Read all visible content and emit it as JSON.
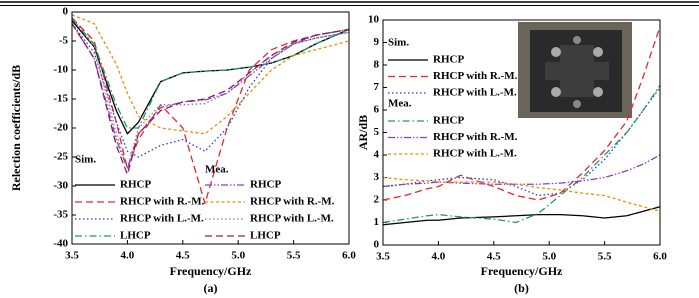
{
  "chart_data": [
    {
      "type": "line",
      "label": "(a)",
      "xlabel": "Frequency/GHz",
      "ylabel": "Relection coefficients/dB",
      "xlim": [
        3.5,
        6.0
      ],
      "xticks": [
        3.5,
        {
          "value": 4,
          "label": "4.0"
        },
        4.5,
        {
          "value": 5,
          "label": "5.0"
        },
        5.5,
        {
          "value": 6,
          "label": "6.0"
        }
      ],
      "ylim": [
        -40,
        0
      ],
      "yticks": [
        -40,
        -35,
        -30,
        -25,
        -20,
        -15,
        -10,
        -5,
        0
      ],
      "x": [
        3.5,
        3.7,
        3.9,
        4.0,
        4.1,
        4.3,
        4.5,
        4.7,
        4.9,
        5.1,
        5.3,
        5.5,
        5.7,
        6.0
      ],
      "legend_groups": [
        {
          "title": "Sim.",
          "series": [
            {
              "name": "RHCP",
              "color": "#000000",
              "dash": "solid",
              "values": [
                -1.5,
                -6,
                -17,
                -21,
                -19,
                -12,
                -10.5,
                -10.2,
                -10,
                -9.5,
                -8.8,
                -7.5,
                -5.5,
                -3
              ]
            },
            {
              "name": "RHCP with R.-M.",
              "color": "#e8262a",
              "dash": "dashed",
              "values": [
                -1,
                -5,
                -19,
                -27,
                -22,
                -16,
                -20,
                -33,
                -20,
                -10,
                -6.5,
                -5,
                -4,
                -3
              ]
            },
            {
              "name": "RHCP with L.-M.",
              "color": "#2b35c9",
              "dash": "dotted",
              "values": [
                -2,
                -7,
                -19,
                -24,
                -25,
                -23,
                -22,
                -24,
                -20,
                -13,
                -8,
                -5.5,
                -4.5,
                -3.5
              ]
            },
            {
              "name": "LHCP",
              "color": "#1e9a6a",
              "dash": "dashdot",
              "values": [
                -1.2,
                -5.5,
                -16,
                -20,
                -20,
                -12,
                -10.5,
                -10.2,
                -10,
                -9.5,
                -8.8,
                -7.5,
                -5.5,
                -3
              ]
            }
          ]
        },
        {
          "title": "Mea.",
          "series": [
            {
              "name": "RHCP",
              "color": "#8a3fc4",
              "dash": "dashdotdot",
              "values": [
                -2,
                -8,
                -22,
                -27,
                -21,
                -16.5,
                -15.5,
                -15.2,
                -14,
                -11,
                -8,
                -5.5,
                -4,
                -3
              ]
            },
            {
              "name": "RHCP with R.-M.",
              "color": "#e89000",
              "dash": "shortdash",
              "values": [
                -0.5,
                -2,
                -9,
                -14,
                -18,
                -20,
                -20.5,
                -21,
                -18,
                -14,
                -10,
                -7.5,
                -6.5,
                -5
              ]
            },
            {
              "name": "RHCP with L.-M.",
              "color": "#7a7a99",
              "dash": "dotted",
              "values": [
                -1,
                -6,
                -21,
                -27,
                -20,
                -16,
                -16,
                -15.8,
                -14,
                -10.5,
                -7.5,
                -5.5,
                -4.5,
                -3.5
              ]
            },
            {
              "name": "LHCP",
              "color": "#8a2050",
              "dash": "dashed",
              "values": [
                -2,
                -8,
                -23,
                -28,
                -21,
                -17,
                -15.5,
                -15,
                -13.5,
                -10.5,
                -7.5,
                -5.2,
                -4,
                -3
              ]
            }
          ]
        }
      ]
    },
    {
      "type": "line",
      "label": "(b)",
      "xlabel": "Frequency/GHz",
      "ylabel": "AR/dB",
      "xlim": [
        3.5,
        6.0
      ],
      "xticks": [
        3.5,
        {
          "value": 4,
          "label": "4.0"
        },
        4.5,
        {
          "value": 5,
          "label": "5.0"
        },
        5.5,
        {
          "value": 6,
          "label": "6.0"
        }
      ],
      "ylim": [
        0,
        10
      ],
      "yticks": [
        0,
        1,
        2,
        3,
        4,
        5,
        6,
        7,
        8,
        9,
        10
      ],
      "x": [
        3.5,
        3.7,
        3.9,
        4.0,
        4.2,
        4.5,
        4.7,
        4.9,
        5.1,
        5.3,
        5.5,
        5.7,
        5.85,
        6.0
      ],
      "legend_groups": [
        {
          "title": "Sim.",
          "series": [
            {
              "name": "RHCP",
              "color": "#000000",
              "dash": "solid",
              "values": [
                0.9,
                1.0,
                1.1,
                1.1,
                1.2,
                1.25,
                1.3,
                1.35,
                1.35,
                1.3,
                1.2,
                1.3,
                1.5,
                1.7
              ]
            },
            {
              "name": "RHCP with R.-M.",
              "color": "#e8262a",
              "dash": "dashed",
              "values": [
                2.0,
                2.2,
                2.5,
                2.6,
                3.1,
                2.6,
                2.2,
                2.0,
                2.3,
                3.2,
                4.2,
                5.5,
                7.5,
                9.7
              ]
            },
            {
              "name": "RHCP with L.-M.",
              "color": "#2b35c9",
              "dash": "dotted",
              "values": [
                2.6,
                2.7,
                2.85,
                2.9,
                3.0,
                2.9,
                2.6,
                2.2,
                2.3,
                2.9,
                3.8,
                5.0,
                6.0,
                7.0
              ]
            }
          ]
        },
        {
          "title": "Mea.",
          "series": [
            {
              "name": "RHCP",
              "color": "#1e9a6a",
              "dash": "dashdot",
              "values": [
                1.0,
                1.15,
                1.3,
                1.35,
                1.25,
                1.15,
                1.0,
                1.4,
                2.2,
                3.0,
                4.0,
                5.0,
                6.0,
                7.1
              ]
            },
            {
              "name": "RHCP with R.-M.",
              "color": "#8a3fc4",
              "dash": "dashdotdot",
              "values": [
                2.6,
                2.7,
                2.75,
                2.8,
                2.75,
                2.7,
                2.7,
                2.7,
                2.75,
                2.85,
                3.0,
                3.3,
                3.6,
                4.0
              ]
            },
            {
              "name": "RHCP with L.-M.",
              "color": "#e89000",
              "dash": "shortdash",
              "values": [
                3.0,
                2.9,
                2.85,
                2.8,
                2.8,
                2.8,
                2.7,
                2.55,
                2.45,
                2.3,
                2.2,
                1.9,
                1.7,
                1.5
              ]
            }
          ]
        }
      ]
    }
  ]
}
